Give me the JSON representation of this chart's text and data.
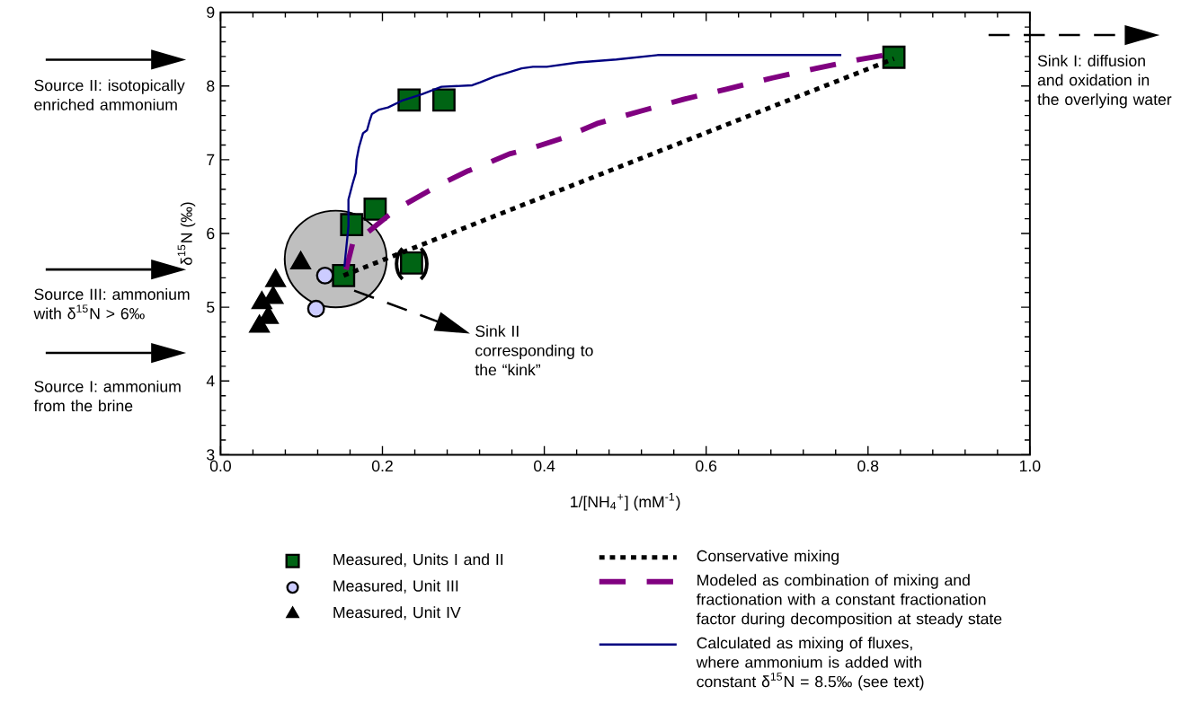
{
  "chart_data": {
    "type": "scatter",
    "xlabel": "1/[NH$_{4}$$^{+}$] (mM$^{-1}$)",
    "ylabel": "δ$^{15}$N (‰)",
    "xlim": [
      0,
      1
    ],
    "ylim": [
      3,
      9
    ],
    "xticks": [
      {
        "value": 0,
        "label": "0.0"
      },
      {
        "value": 0.04,
        "label": null
      },
      {
        "value": 0.08,
        "label": null
      },
      {
        "value": 0.12,
        "label": null
      },
      {
        "value": 0.16,
        "label": null
      },
      {
        "value": 0.2,
        "label": "0.2"
      },
      {
        "value": 0.24,
        "label": null
      },
      {
        "value": 0.28,
        "label": null
      },
      {
        "value": 0.32,
        "label": null
      },
      {
        "value": 0.36,
        "label": null
      },
      {
        "value": 0.4,
        "label": "0.4"
      },
      {
        "value": 0.44,
        "label": null
      },
      {
        "value": 0.48,
        "label": null
      },
      {
        "value": 0.52,
        "label": null
      },
      {
        "value": 0.56,
        "label": null
      },
      {
        "value": 0.6,
        "label": "0.6"
      },
      {
        "value": 0.64,
        "label": null
      },
      {
        "value": 0.68,
        "label": null
      },
      {
        "value": 0.72,
        "label": null
      },
      {
        "value": 0.76,
        "label": null
      },
      {
        "value": 0.8,
        "label": "0.8"
      },
      {
        "value": 0.84,
        "label": null
      },
      {
        "value": 0.88,
        "label": null
      },
      {
        "value": 0.92,
        "label": null
      },
      {
        "value": 0.96,
        "label": null
      },
      {
        "value": 1,
        "label": "1.0"
      }
    ],
    "yticks": [
      3,
      {
        "value": 3.2,
        "label": null
      },
      {
        "value": 3.4,
        "label": null
      },
      {
        "value": 3.6,
        "label": null
      },
      {
        "value": 3.8,
        "label": null
      },
      4,
      {
        "value": 4.2,
        "label": null
      },
      {
        "value": 4.4,
        "label": null
      },
      {
        "value": 4.6,
        "label": null
      },
      {
        "value": 4.8,
        "label": null
      },
      5,
      {
        "value": 5.2,
        "label": null
      },
      {
        "value": 5.4,
        "label": null
      },
      {
        "value": 5.6,
        "label": null
      },
      {
        "value": 5.8,
        "label": null
      },
      6,
      {
        "value": 6.2,
        "label": null
      },
      {
        "value": 6.4,
        "label": null
      },
      {
        "value": 6.6,
        "label": null
      },
      {
        "value": 6.8,
        "label": null
      },
      7,
      {
        "value": 7.2,
        "label": null
      },
      {
        "value": 7.4,
        "label": null
      },
      {
        "value": 7.6,
        "label": null
      },
      {
        "value": 7.8,
        "label": null
      },
      8,
      {
        "value": 8.2,
        "label": null
      },
      {
        "value": 8.4,
        "label": null
      },
      {
        "value": 8.6,
        "label": null
      },
      {
        "value": 8.8,
        "label": null
      },
      9
    ],
    "legend": "bottom",
    "series": [
      {
        "name": "Measured, Units I and II",
        "marker": "square",
        "color": "#006414",
        "x": [
          0.152,
          0.162,
          0.191,
          0.233,
          0.276,
          0.236,
          0.832
        ],
        "values": [
          5.43,
          6.12,
          6.33,
          7.81,
          7.81,
          5.6,
          8.39
        ]
      },
      {
        "name": "Measured, Unit III",
        "marker": "circle",
        "color": "#ccccff",
        "x": [
          0.129,
          0.118
        ],
        "values": [
          5.43,
          4.98
        ]
      },
      {
        "name": "Measured, Unit IV",
        "marker": "triangle",
        "color": "#000000",
        "x": [
          0.099,
          0.068,
          0.065,
          0.051,
          0.059,
          0.048
        ],
        "values": [
          5.6,
          5.36,
          5.13,
          5.06,
          4.86,
          4.74
        ]
      },
      {
        "name": "Conservative mixing",
        "type": "line",
        "line_style": "dotted",
        "color": "#000000",
        "x": [
          0.152,
          0.832
        ],
        "values": [
          5.43,
          8.37
        ]
      },
      {
        "name": "Modeled as combination of mixing and fractionation with a constant fractionation factor during decomposition at steady state",
        "type": "line",
        "line_style": "dashed",
        "color": "#800080",
        "x": [
          0.155,
          0.164,
          0.181,
          0.207,
          0.227,
          0.256,
          0.276,
          0.306,
          0.327,
          0.357,
          0.379,
          0.422,
          0.465,
          0.519,
          0.572,
          0.626,
          0.682,
          0.736,
          0.79,
          0.831
        ],
        "values": [
          5.51,
          5.9,
          6.01,
          6.24,
          6.39,
          6.57,
          6.69,
          6.85,
          6.94,
          7.08,
          7.14,
          7.29,
          7.49,
          7.66,
          7.82,
          7.96,
          8.11,
          8.24,
          8.36,
          8.44
        ]
      },
      {
        "name": "Calculated as mixing of fluxes, where ammonium is added with constant δ$^{15}$N = 8.5‰ (see text)",
        "type": "line",
        "line_style": "solid",
        "color": "#000080",
        "x": [
          0.153,
          0.158,
          0.158,
          0.163,
          0.167,
          0.168,
          0.171,
          0.176,
          0.181,
          0.184,
          0.187,
          0.196,
          0.207,
          0.224,
          0.249,
          0.273,
          0.311,
          0.321,
          0.339,
          0.354,
          0.372,
          0.386,
          0.403,
          0.442,
          0.489,
          0.54,
          0.767
        ],
        "values": [
          5.55,
          6.1,
          6.46,
          6.67,
          6.82,
          7.0,
          7.17,
          7.36,
          7.4,
          7.52,
          7.62,
          7.68,
          7.71,
          7.8,
          7.89,
          7.99,
          8.01,
          8.05,
          8.13,
          8.18,
          8.24,
          8.26,
          8.26,
          8.32,
          8.36,
          8.42,
          8.42
        ]
      }
    ],
    "annotations": [
      "Source II: isotopically enriched ammonium",
      "Source III: ammonium with δ$^{15}$N > 6‰",
      "Source I: ammonium from the brine",
      "Sink II corresponding to the “kink”",
      "Sink I: diffusion and oxidation in the overlying water"
    ]
  }
}
